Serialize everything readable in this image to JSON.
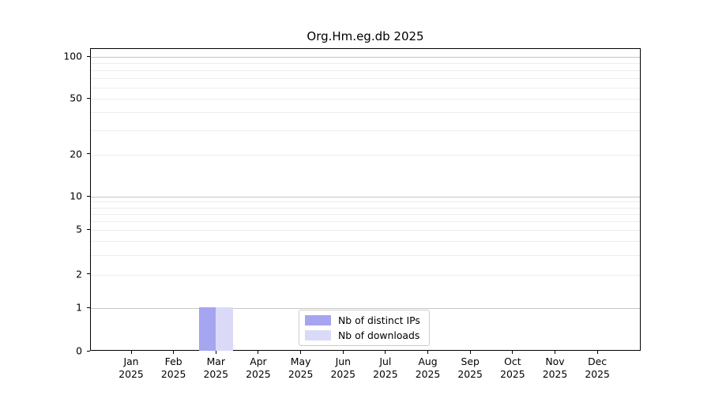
{
  "chart_data": {
    "type": "bar",
    "title": "Org.Hm.eg.db 2025",
    "categories": [
      "Jan",
      "Feb",
      "Mar",
      "Apr",
      "May",
      "Jun",
      "Jul",
      "Aug",
      "Sep",
      "Oct",
      "Nov",
      "Dec"
    ],
    "category_year": "2025",
    "series": [
      {
        "name": "Nb of distinct IPs",
        "color": "#a5a5f0",
        "values": [
          0,
          0,
          1,
          0,
          0,
          0,
          0,
          0,
          0,
          0,
          0,
          0
        ]
      },
      {
        "name": "Nb of downloads",
        "color": "#dadaf8",
        "values": [
          0,
          0,
          1,
          0,
          0,
          0,
          0,
          0,
          0,
          0,
          0,
          0
        ]
      }
    ],
    "xlabel": "",
    "ylabel": "",
    "y_axis": {
      "scale": "log above 1, linear 0-1 (symlog-like)",
      "tick_labels": [
        0,
        1,
        2,
        5,
        10,
        20,
        50,
        100
      ],
      "major_gridlines": [
        1,
        10,
        100
      ],
      "minor_gridlines": [
        2,
        3,
        4,
        5,
        6,
        7,
        8,
        9,
        20,
        30,
        40,
        50,
        60,
        70,
        80,
        90
      ],
      "range": [
        0,
        100
      ]
    },
    "grid": true,
    "legend": {
      "position": "lower center",
      "entries": [
        "Nb of distinct IPs",
        "Nb of downloads"
      ]
    },
    "colors": {
      "grid_major": "#c6c6c6",
      "grid_minor": "#ededed",
      "spine": "#000000",
      "text": "#000000",
      "background": "#ffffff"
    }
  }
}
